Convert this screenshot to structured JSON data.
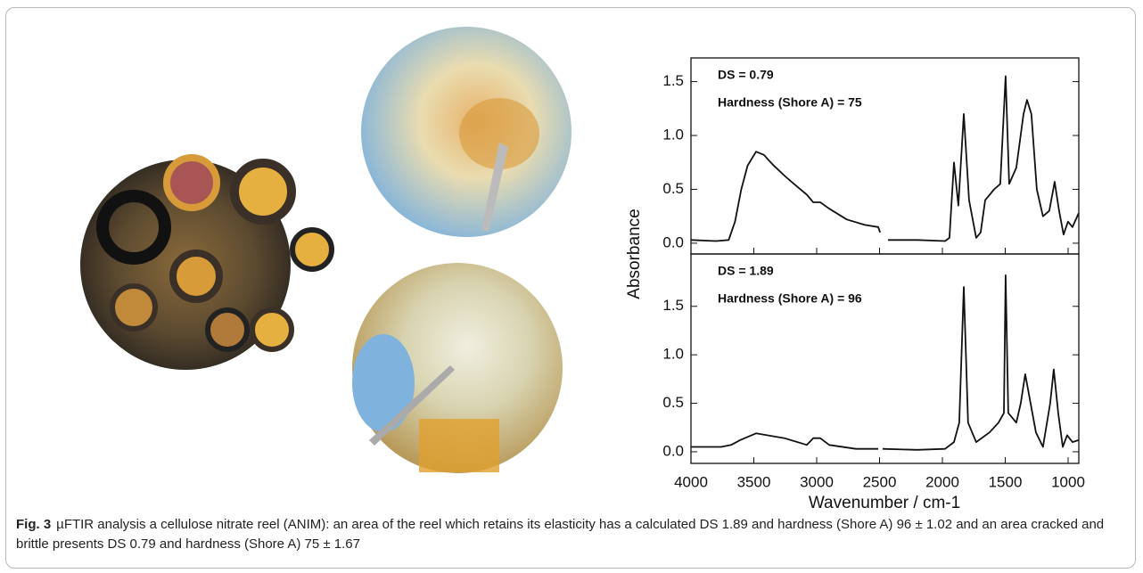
{
  "figure": {
    "caption_label": "Fig. 3",
    "caption": "µFTIR analysis a cellulose nitrate reel (ANIM): an area of the reel which retains its elasticity has a calculated DS 1.89 and hardness (Shore A) 96 ± 1.02 and an area cracked and brittle presents DS 0.79 and hardness (Shore A) 75 ± 1.67"
  },
  "chart_data": [
    {
      "type": "line",
      "annotations": [
        "DS = 0.79",
        "Hardness (Shore A) = 75"
      ],
      "xlim": [
        4000,
        915
      ],
      "ylim": [
        -0.1,
        1.72
      ],
      "yticks": [
        0.0,
        0.5,
        1.0,
        1.5
      ],
      "x": [
        4000,
        3800,
        3700,
        3650,
        3600,
        3550,
        3482,
        3420,
        3350,
        3250,
        3150,
        3078,
        3028,
        2972,
        2900,
        2760,
        2617,
        2511,
        2495,
        2460,
        2433,
        2200,
        1979,
        1944,
        1908,
        1873,
        1830,
        1788,
        1731,
        1696,
        1660,
        1589,
        1540,
        1497,
        1469,
        1412,
        1355,
        1327,
        1292,
        1249,
        1200,
        1150,
        1107,
        1072,
        1036,
        1001,
        965,
        916
      ],
      "series": [
        {
          "color": "#111111",
          "values": [
            0.03,
            0.02,
            0.03,
            0.2,
            0.5,
            0.72,
            0.85,
            0.82,
            0.73,
            0.62,
            0.52,
            0.45,
            0.38,
            0.38,
            0.32,
            0.22,
            0.17,
            0.15,
            0.1,
            null,
            0.03,
            0.03,
            0.02,
            0.05,
            0.75,
            0.35,
            1.2,
            0.4,
            0.05,
            0.1,
            0.4,
            0.5,
            0.55,
            1.55,
            0.55,
            0.7,
            1.2,
            1.33,
            1.2,
            0.5,
            0.25,
            0.3,
            0.57,
            0.3,
            0.08,
            0.2,
            0.15,
            0.28
          ]
        }
      ]
    },
    {
      "type": "line",
      "annotations": [
        "DS = 1.89",
        "Hardness (Shore A) = 96"
      ],
      "xlabel": "Wavenumber / cm-1",
      "ylabel": "Absorbance",
      "xlim": [
        4000,
        915
      ],
      "ylim": [
        -0.12,
        2.04
      ],
      "yticks": [
        0.0,
        0.5,
        1.0,
        1.5
      ],
      "xticks": [
        4000,
        3500,
        3000,
        2500,
        2000,
        1500,
        1000
      ],
      "x": [
        4000,
        3760,
        3680,
        3610,
        3482,
        3256,
        3078,
        3028,
        2972,
        2900,
        2688,
        2511,
        2460,
        2476,
        2200,
        1979,
        1908,
        1866,
        1830,
        1796,
        1731,
        1625,
        1554,
        1511,
        1497,
        1476,
        1412,
        1377,
        1341,
        1306,
        1256,
        1200,
        1143,
        1114,
        1079,
        1043,
        1008,
        965,
        916
      ],
      "series": [
        {
          "color": "#111111",
          "values": [
            0.05,
            0.05,
            0.07,
            0.12,
            0.19,
            0.14,
            0.07,
            0.14,
            0.14,
            0.07,
            0.03,
            0.03,
            null,
            0.03,
            0.02,
            0.03,
            0.1,
            0.3,
            1.7,
            0.3,
            0.1,
            0.2,
            0.3,
            0.4,
            1.82,
            0.4,
            0.3,
            0.5,
            0.8,
            0.55,
            0.2,
            0.05,
            0.5,
            0.85,
            0.4,
            0.05,
            0.17,
            0.1,
            0.12
          ]
        }
      ]
    }
  ]
}
